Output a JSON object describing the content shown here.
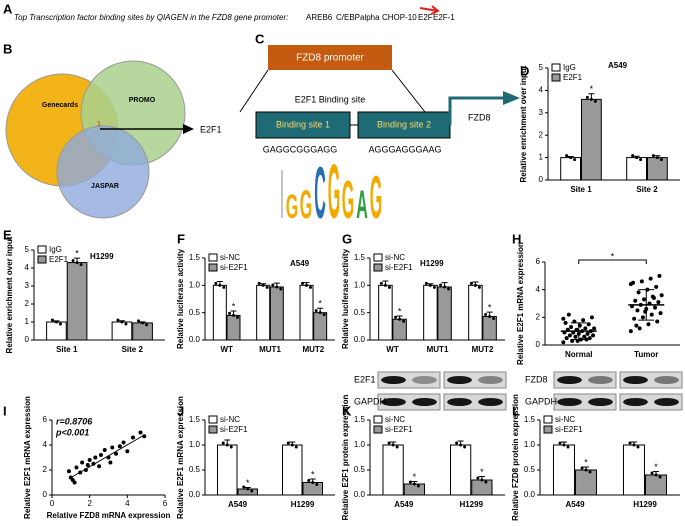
{
  "panel_labels": [
    "A",
    "B",
    "C",
    "D",
    "E",
    "F",
    "G",
    "H",
    "I",
    "J",
    "K",
    "L"
  ],
  "panel_a": {
    "text": "Top Transcription factor binding sites by QIAGEN in the FZD8 gene promoter:",
    "factors": [
      "AREB6",
      "C/EBPalpha",
      "CHOP-10",
      "E2F",
      "E2F-1"
    ]
  },
  "venn": {
    "sets": [
      "Genecards",
      "PROMO",
      "JASPAR"
    ],
    "intersection": "1",
    "result": "E2F1"
  },
  "promoter": {
    "title": "FZD8 promoter",
    "subtitle": "E2F1 Binding site",
    "sites": [
      "Binding site 1",
      "Binding site 2"
    ],
    "sequences": [
      "GAGGCGGGAGG",
      "AGGGAGGGAAG"
    ],
    "target": "FZD8",
    "logo": [
      "G",
      "G",
      "C",
      "G",
      "G",
      "A",
      "G"
    ]
  },
  "blots": {
    "rows": [
      "E2F1",
      "GAPDH",
      "FZD8",
      "GAPDH"
    ]
  },
  "chart_data": [
    {
      "type": "bar",
      "title": "A549",
      "ylabel": "Relative enrichment over input",
      "categories": [
        "Site 1",
        "Site 2"
      ],
      "ylim": [
        0,
        5
      ],
      "yticks": [
        0,
        1,
        2,
        3,
        4,
        5
      ],
      "series": [
        {
          "name": "IgG",
          "color": "#ffffff",
          "values": [
            1,
            1
          ],
          "errors": [
            0.05,
            0.06
          ]
        },
        {
          "name": "E2F1",
          "color": "#999999",
          "values": [
            3.6,
            1
          ],
          "errors": [
            0.25,
            0.08
          ],
          "annotations": [
            "*",
            null
          ]
        }
      ]
    },
    {
      "type": "bar",
      "title": "H1299",
      "ylabel": "Relative enrichment over input",
      "categories": [
        "Site 1",
        "Site 2"
      ],
      "ylim": [
        0,
        5
      ],
      "yticks": [
        0,
        1,
        2,
        3,
        4,
        5
      ],
      "series": [
        {
          "name": "IgG",
          "color": "#ffffff",
          "values": [
            1,
            1
          ],
          "errors": [
            0.06,
            0.07
          ]
        },
        {
          "name": "E2F1",
          "color": "#999999",
          "values": [
            4.3,
            0.95
          ],
          "errors": [
            0.25,
            0.06
          ],
          "annotations": [
            "*",
            null
          ]
        }
      ]
    },
    {
      "type": "bar",
      "title": "A549",
      "ylabel": "Relative luciferase activity",
      "categories": [
        "WT",
        "MUT1",
        "MUT2"
      ],
      "ylim": [
        0,
        1.5
      ],
      "yticks": [
        {
          "value": 0,
          "label": "0.0"
        },
        {
          "value": 0.5,
          "label": "0.5"
        },
        {
          "value": 1,
          "label": "1.0"
        },
        {
          "value": 1.5,
          "label": "1.5"
        }
      ],
      "series": [
        {
          "name": "si-NC",
          "color": "#ffffff",
          "values": [
            1,
            1,
            1
          ],
          "errors": [
            0.07,
            0.03,
            0.05
          ]
        },
        {
          "name": "si-E2F1",
          "color": "#999999",
          "values": [
            0.45,
            0.97,
            0.5
          ],
          "errors": [
            0.08,
            0.07,
            0.08
          ],
          "annotations": [
            "*",
            null,
            "*"
          ]
        }
      ]
    },
    {
      "type": "bar",
      "title": "H1299",
      "ylabel": "Relative luciferase activity",
      "categories": [
        "WT",
        "MUT1",
        "MUT2"
      ],
      "ylim": [
        0,
        1.5
      ],
      "yticks": [
        {
          "value": 0,
          "label": "0.0"
        },
        {
          "value": 0.5,
          "label": "0.5"
        },
        {
          "value": 1,
          "label": "1.0"
        },
        {
          "value": 1.5,
          "label": "1.5"
        }
      ],
      "series": [
        {
          "name": "si-NC",
          "color": "#ffffff",
          "values": [
            1,
            1,
            1
          ],
          "errors": [
            0.08,
            0.03,
            0.06
          ]
        },
        {
          "name": "si-E2F1",
          "color": "#999999",
          "values": [
            0.38,
            0.97,
            0.43
          ],
          "errors": [
            0.06,
            0.08,
            0.08
          ],
          "annotations": [
            "*",
            null,
            "*"
          ]
        }
      ]
    },
    {
      "type": "strip",
      "ylabel": "Relative E2F1 mRNA expression",
      "categories": [
        "Normal",
        "Tumor"
      ],
      "ylim": [
        0,
        6
      ],
      "yticks": [
        0,
        2,
        4,
        6
      ],
      "significance": "*",
      "values": [
        [
          0.2,
          0.3,
          0.4,
          0.5,
          0.5,
          0.6,
          0.6,
          0.7,
          0.7,
          0.8,
          0.8,
          0.9,
          0.9,
          1.0,
          1.0,
          1.1,
          1.1,
          1.2,
          1.2,
          1.3,
          1.4,
          1.5,
          1.6,
          1.7,
          1.8,
          2.0,
          2.2,
          0.3,
          0.4,
          1.9
        ],
        [
          1.0,
          1.2,
          1.5,
          1.7,
          1.9,
          2.0,
          2.2,
          2.3,
          2.5,
          2.6,
          2.7,
          2.8,
          2.9,
          3.0,
          3.1,
          3.2,
          3.3,
          3.5,
          3.6,
          3.8,
          4.0,
          4.2,
          4.5,
          4.6,
          4.8,
          5.0,
          1.4,
          2.4,
          3.4,
          4.4
        ]
      ],
      "means": [
        1.0,
        2.9
      ],
      "sd": [
        0.6,
        1.1
      ]
    },
    {
      "type": "scatter",
      "ylabel": "Relative E2F1 mRNA expression",
      "xlabel": "Relative FZD8 mRNA expression",
      "annotations": [
        "r=0.8706",
        "p<0.001"
      ],
      "xlim": [
        0,
        6
      ],
      "xticks": [
        0,
        2,
        4,
        6
      ],
      "ylim": [
        0,
        6
      ],
      "yticks": [
        0,
        2,
        4,
        6
      ],
      "x": [
        0.9,
        1.0,
        1.1,
        1.2,
        1.3,
        1.5,
        1.6,
        1.8,
        1.9,
        2.0,
        2.2,
        2.3,
        2.5,
        2.6,
        2.8,
        3.0,
        3.1,
        3.2,
        3.4,
        3.6,
        3.8,
        4.0,
        4.3,
        4.7,
        4.9
      ],
      "y": [
        1.9,
        1.4,
        1.2,
        1.0,
        2.2,
        1.8,
        2.6,
        2.0,
        2.4,
        2.8,
        2.5,
        3.0,
        2.3,
        3.2,
        3.6,
        3.0,
        2.6,
        3.8,
        3.3,
        3.9,
        4.2,
        3.5,
        4.6,
        5.0,
        4.7
      ],
      "fit_line": {
        "x": [
          0.9,
          4.9
        ],
        "y": [
          1.3,
          4.8
        ]
      }
    },
    {
      "type": "bar",
      "ylabel": "Relative E2F1 mRNA expression",
      "categories": [
        "A549",
        "H1299"
      ],
      "ylim": [
        0,
        1.5
      ],
      "yticks": [
        {
          "value": 0,
          "label": "0.0"
        },
        {
          "value": 0.5,
          "label": "0.5"
        },
        {
          "value": 1,
          "label": "1.0"
        },
        {
          "value": 1.5,
          "label": "1.5"
        }
      ],
      "series": [
        {
          "name": "si-NC",
          "color": "#ffffff",
          "values": [
            1,
            1
          ],
          "errors": [
            0.1,
            0.06
          ]
        },
        {
          "name": "si-E2F1",
          "color": "#999999",
          "values": [
            0.12,
            0.25
          ],
          "errors": [
            0.03,
            0.07
          ],
          "annotations": [
            "*",
            "*"
          ]
        }
      ]
    },
    {
      "type": "bar",
      "ylabel": "Relative E2F1 protein expression",
      "categories": [
        "A549",
        "H1299"
      ],
      "ylim": [
        0,
        1.5
      ],
      "yticks": [
        {
          "value": 0,
          "label": "0.0"
        },
        {
          "value": 0.5,
          "label": "0.5"
        },
        {
          "value": 1,
          "label": "1.0"
        },
        {
          "value": 1.5,
          "label": "1.5"
        }
      ],
      "series": [
        {
          "name": "si-NC",
          "color": "#ffffff",
          "values": [
            1,
            1
          ],
          "errors": [
            0.06,
            0.08
          ]
        },
        {
          "name": "si-E2F1",
          "color": "#999999",
          "values": [
            0.22,
            0.3
          ],
          "errors": [
            0.05,
            0.07
          ],
          "annotations": [
            "*",
            "*"
          ]
        }
      ]
    },
    {
      "type": "bar",
      "ylabel": "Relative FZD8 protein expression",
      "categories": [
        "A549",
        "H1299"
      ],
      "ylim": [
        0,
        1.5
      ],
      "yticks": [
        {
          "value": 0,
          "label": "0.0"
        },
        {
          "value": 0.5,
          "label": "0.5"
        },
        {
          "value": 1,
          "label": "1.0"
        },
        {
          "value": 1.5,
          "label": "1.5"
        }
      ],
      "series": [
        {
          "name": "si-NC",
          "color": "#ffffff",
          "values": [
            1,
            1
          ],
          "errors": [
            0.06,
            0.06
          ]
        },
        {
          "name": "si-E2F1",
          "color": "#999999",
          "values": [
            0.5,
            0.4
          ],
          "errors": [
            0.06,
            0.07
          ],
          "annotations": [
            "*",
            "*"
          ]
        }
      ]
    }
  ]
}
